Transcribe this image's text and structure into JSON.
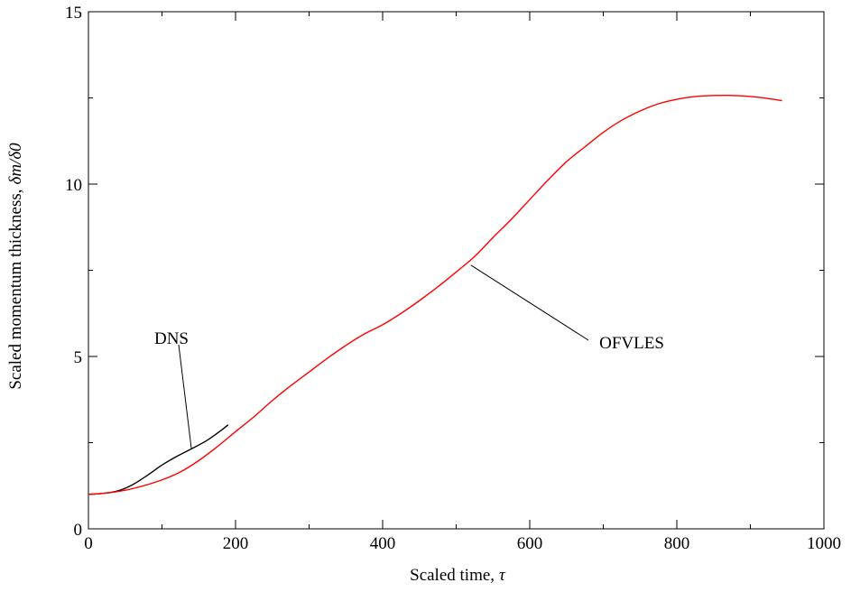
{
  "chart_data": {
    "type": "line",
    "xlabel": "Scaled time,",
    "xlabel_symbol": "τ",
    "ylabel": "Scaled momentum thickness,",
    "ylabel_symbol": "δm/δ0",
    "xlim": [
      0,
      1000
    ],
    "ylim": [
      0,
      15
    ],
    "xticks": [
      0,
      200,
      400,
      600,
      800,
      1000
    ],
    "yticks": [
      0,
      5,
      10,
      15
    ],
    "grid": false,
    "legend": "none",
    "series": [
      {
        "name": "DNS",
        "color": "#000000",
        "x": [
          0,
          20,
          40,
          60,
          80,
          100,
          120,
          140,
          160,
          180,
          190
        ],
        "y": [
          1.0,
          1.03,
          1.1,
          1.28,
          1.55,
          1.85,
          2.1,
          2.32,
          2.55,
          2.85,
          3.02
        ]
      },
      {
        "name": "OFVLES",
        "color": "#ff0000",
        "x": [
          0,
          25,
          50,
          75,
          100,
          125,
          150,
          175,
          200,
          225,
          250,
          275,
          300,
          325,
          350,
          375,
          400,
          425,
          450,
          475,
          500,
          525,
          550,
          575,
          600,
          625,
          650,
          675,
          700,
          725,
          750,
          775,
          800,
          825,
          850,
          875,
          900,
          925,
          943
        ],
        "y": [
          1.0,
          1.04,
          1.12,
          1.25,
          1.42,
          1.65,
          1.98,
          2.38,
          2.82,
          3.25,
          3.72,
          4.15,
          4.55,
          4.95,
          5.32,
          5.65,
          5.92,
          6.25,
          6.62,
          7.02,
          7.45,
          7.9,
          8.45,
          8.98,
          9.55,
          10.12,
          10.65,
          11.08,
          11.5,
          11.85,
          12.12,
          12.33,
          12.46,
          12.54,
          12.57,
          12.57,
          12.54,
          12.48,
          12.42
        ]
      }
    ],
    "annotations": [
      {
        "text": "DNS",
        "series": "DNS",
        "x": 140,
        "y": 2.32
      },
      {
        "text": "OFVLES",
        "series": "OFVLES",
        "x": 520,
        "y": 7.65
      }
    ]
  }
}
